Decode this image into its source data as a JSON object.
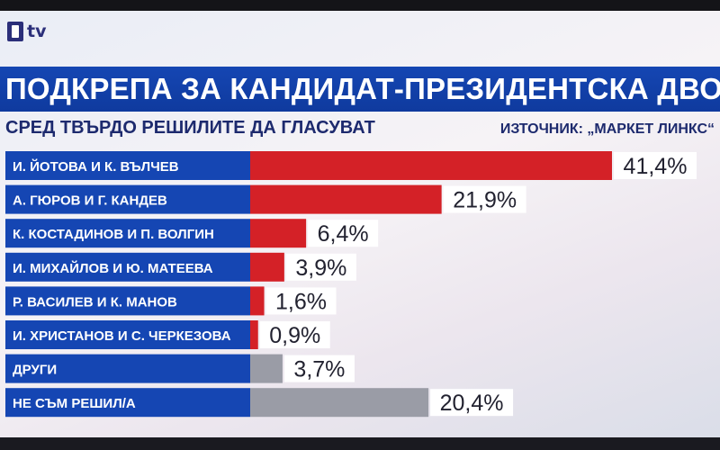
{
  "brand": {
    "logo_text": "tv",
    "colors": {
      "primary": "#1546b3",
      "bar": "#d42127",
      "bar_other": "#9a9ca6",
      "label_bg": "#ffffff"
    }
  },
  "header": {
    "title": "ПОДКРЕПА ЗА КАНДИДАТ-ПРЕЗИДЕНТСКА ДВОЙКА",
    "subtitle": "СРЕД ТВЪРДО РЕШИЛИТЕ ДА ГЛАСУВАТ",
    "source": "ИЗТОЧНИК: „МАРКЕТ ЛИНКС“"
  },
  "chart_data": {
    "type": "bar",
    "orientation": "horizontal",
    "categories": [
      "И. ЙОТОВА И К. ВЪЛЧЕВ",
      "А. ГЮРОВ И Г. КАНДЕВ",
      "К. КОСТАДИНОВ И П. ВОЛГИН",
      "И. МИХАЙЛОВ И Ю. МАТЕЕВА",
      "Р. ВАСИЛЕВ И К. МАНОВ",
      "И. ХРИСТАНОВ И С. ЧЕРКЕЗОВА",
      "ДРУГИ",
      "НЕ СЪМ РЕШИЛ/А"
    ],
    "values": [
      41.4,
      21.9,
      6.4,
      3.9,
      1.6,
      0.9,
      3.7,
      20.4
    ],
    "value_labels": [
      "41,4%",
      "21,9%",
      "6,4%",
      "3,9%",
      "1,6%",
      "0,9%",
      "3,7%",
      "20,4%"
    ],
    "bar_colors": [
      "#d42127",
      "#d42127",
      "#d42127",
      "#d42127",
      "#d42127",
      "#d42127",
      "#9a9ca6",
      "#9a9ca6"
    ],
    "title": "ПОДКРЕПА ЗА КАНДИДАТ-ПРЕЗИДЕНТСКА ДВОЙКА",
    "xlabel": "",
    "ylabel": "",
    "grid": false,
    "legend": "none"
  }
}
